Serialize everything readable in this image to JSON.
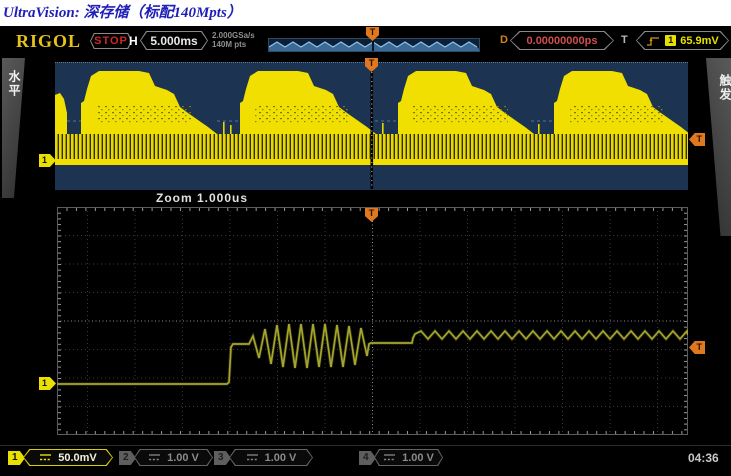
{
  "title": "UltraVision: 深存储（标配140Mpts）",
  "topbar": {
    "logo": "RIGOL",
    "run_state": "STOP",
    "h_label": "H",
    "timebase": "5.000ms",
    "sample_rate": "2.000GSa/s",
    "mem_depth": "140M pts",
    "d_label": "D",
    "delay": "0.00000000ps",
    "t_label": "T",
    "trigger_source_badge": "1",
    "trigger_level": "65.9mV"
  },
  "side_tabs": {
    "left": "水平",
    "right": "触发"
  },
  "overview": {
    "channel_marker": "1",
    "trigger_marker": "T"
  },
  "zoom_window": {
    "label": "Zoom 1.000us",
    "channel_marker": "1",
    "trigger_marker": "T"
  },
  "channels": [
    {
      "num": "1",
      "scale": "50.0mV",
      "active": true
    },
    {
      "num": "2",
      "scale": "1.00 V",
      "active": false
    },
    {
      "num": "3",
      "scale": "1.00 V",
      "active": false
    },
    {
      "num": "4",
      "scale": "1.00 V",
      "active": false
    }
  ],
  "clock": "04:36",
  "colors": {
    "accent_yellow": "#e8e000",
    "waveform_yellow": "#f0df00",
    "zoom_trace_olive": "#a6a62e",
    "trigger_orange": "#e07820",
    "overview_bg_navy": "#1c3452",
    "stop_red": "#cc2a2a",
    "delay_red": "#cf4f4f",
    "membar_blue": "#8ec0e8",
    "title_blue": "#1f1fb8"
  }
}
